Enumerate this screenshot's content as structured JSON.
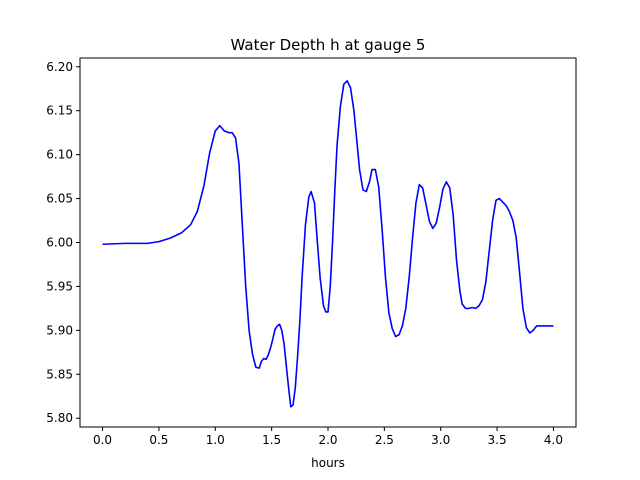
{
  "chart_data": {
    "type": "line",
    "title": "Water Depth h at gauge 5",
    "xlabel": "hours",
    "ylabel": "",
    "xlim": [
      -0.2,
      4.2
    ],
    "ylim": [
      5.79,
      6.21
    ],
    "x_ticks": [
      0.0,
      0.5,
      1.0,
      1.5,
      2.0,
      2.5,
      3.0,
      3.5,
      4.0
    ],
    "x_tick_labels": [
      "0.0",
      "0.5",
      "1.0",
      "1.5",
      "2.0",
      "2.5",
      "3.0",
      "3.5",
      "4.0"
    ],
    "y_ticks": [
      5.8,
      5.85,
      5.9,
      5.95,
      6.0,
      6.05,
      6.1,
      6.15,
      6.2
    ],
    "y_tick_labels": [
      "5.80",
      "5.85",
      "5.90",
      "5.95",
      "6.00",
      "6.05",
      "6.10",
      "6.15",
      "6.20"
    ],
    "grid": false,
    "series": [
      {
        "color": "#0000ff",
        "x": [
          0.0,
          0.2,
          0.4,
          0.5,
          0.6,
          0.7,
          0.78,
          0.84,
          0.9,
          0.95,
          1.0,
          1.04,
          1.08,
          1.12,
          1.15,
          1.18,
          1.21,
          1.24,
          1.27,
          1.3,
          1.33,
          1.36,
          1.39,
          1.41,
          1.43,
          1.45,
          1.47,
          1.49,
          1.51,
          1.53,
          1.55,
          1.57,
          1.59,
          1.61,
          1.63,
          1.65,
          1.67,
          1.69,
          1.71,
          1.73,
          1.75,
          1.77,
          1.8,
          1.83,
          1.85,
          1.88,
          1.9,
          1.93,
          1.96,
          1.98,
          2.0,
          2.02,
          2.04,
          2.06,
          2.08,
          2.11,
          2.14,
          2.17,
          2.2,
          2.23,
          2.26,
          2.28,
          2.31,
          2.34,
          2.37,
          2.39,
          2.42,
          2.45,
          2.48,
          2.51,
          2.54,
          2.57,
          2.6,
          2.63,
          2.66,
          2.69,
          2.72,
          2.75,
          2.78,
          2.81,
          2.84,
          2.87,
          2.9,
          2.93,
          2.96,
          2.99,
          3.02,
          3.05,
          3.08,
          3.11,
          3.14,
          3.17,
          3.19,
          3.22,
          3.25,
          3.28,
          3.31,
          3.34,
          3.37,
          3.4,
          3.43,
          3.46,
          3.49,
          3.52,
          3.55,
          3.58,
          3.61,
          3.64,
          3.67,
          3.7,
          3.73,
          3.76,
          3.79,
          3.82,
          3.85,
          3.88,
          3.91,
          3.94,
          3.97,
          4.0
        ],
        "y": [
          5.998,
          5.999,
          5.999,
          6.001,
          6.005,
          6.011,
          6.02,
          6.035,
          6.065,
          6.102,
          6.127,
          6.133,
          6.127,
          6.125,
          6.125,
          6.119,
          6.09,
          6.02,
          5.95,
          5.9,
          5.873,
          5.858,
          5.857,
          5.865,
          5.868,
          5.867,
          5.872,
          5.88,
          5.89,
          5.901,
          5.905,
          5.907,
          5.9,
          5.885,
          5.86,
          5.835,
          5.813,
          5.815,
          5.835,
          5.87,
          5.91,
          5.96,
          6.02,
          6.052,
          6.058,
          6.045,
          6.01,
          5.96,
          5.928,
          5.921,
          5.921,
          5.95,
          6.0,
          6.058,
          6.11,
          6.155,
          6.18,
          6.184,
          6.176,
          6.15,
          6.11,
          6.083,
          6.06,
          6.058,
          6.07,
          6.083,
          6.083,
          6.063,
          6.015,
          5.96,
          5.92,
          5.902,
          5.893,
          5.895,
          5.905,
          5.925,
          5.96,
          6.005,
          6.045,
          6.066,
          6.062,
          6.043,
          6.024,
          6.016,
          6.022,
          6.04,
          6.061,
          6.069,
          6.062,
          6.032,
          5.98,
          5.945,
          5.93,
          5.925,
          5.925,
          5.926,
          5.925,
          5.928,
          5.935,
          5.955,
          5.99,
          6.025,
          6.048,
          6.05,
          6.046,
          6.042,
          6.035,
          6.025,
          6.005,
          5.965,
          5.924,
          5.903,
          5.897,
          5.9,
          5.905,
          5.905,
          5.905,
          5.905,
          5.905,
          5.905
        ]
      }
    ]
  }
}
